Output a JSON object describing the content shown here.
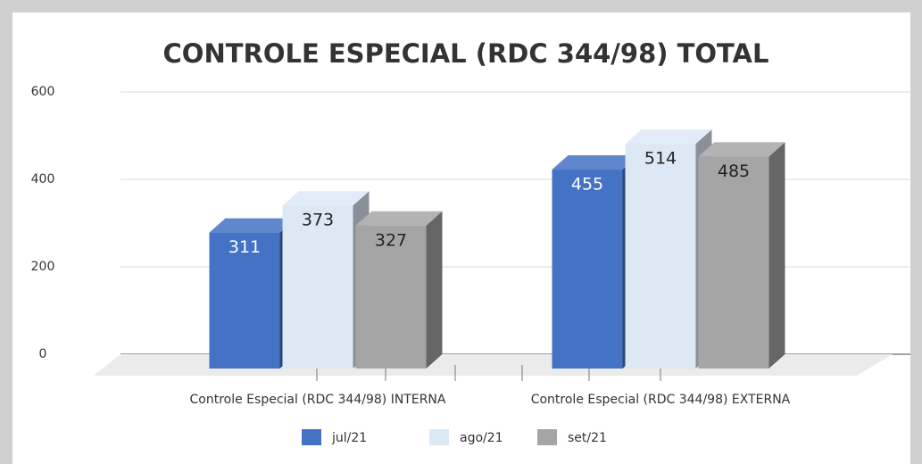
{
  "chart_data": {
    "type": "bar3d",
    "title": "CONTROLE ESPECIAL (RDC 344/98) TOTAL",
    "categories": [
      "Controle Especial (RDC 344/98) INTERNA",
      "Controle Especial (RDC 344/98) EXTERNA"
    ],
    "series": [
      {
        "name": "jul/21",
        "color": "#4472c4",
        "values": [
          311,
          455
        ]
      },
      {
        "name": "ago/21",
        "color": "#dde8f5",
        "values": [
          373,
          514
        ]
      },
      {
        "name": "set/21",
        "color": "#a5a5a5",
        "values": [
          327,
          485
        ]
      }
    ],
    "ylim": [
      0,
      600
    ],
    "yticks": [
      0,
      200,
      400,
      600
    ],
    "grid": true,
    "legend": "bottom"
  }
}
